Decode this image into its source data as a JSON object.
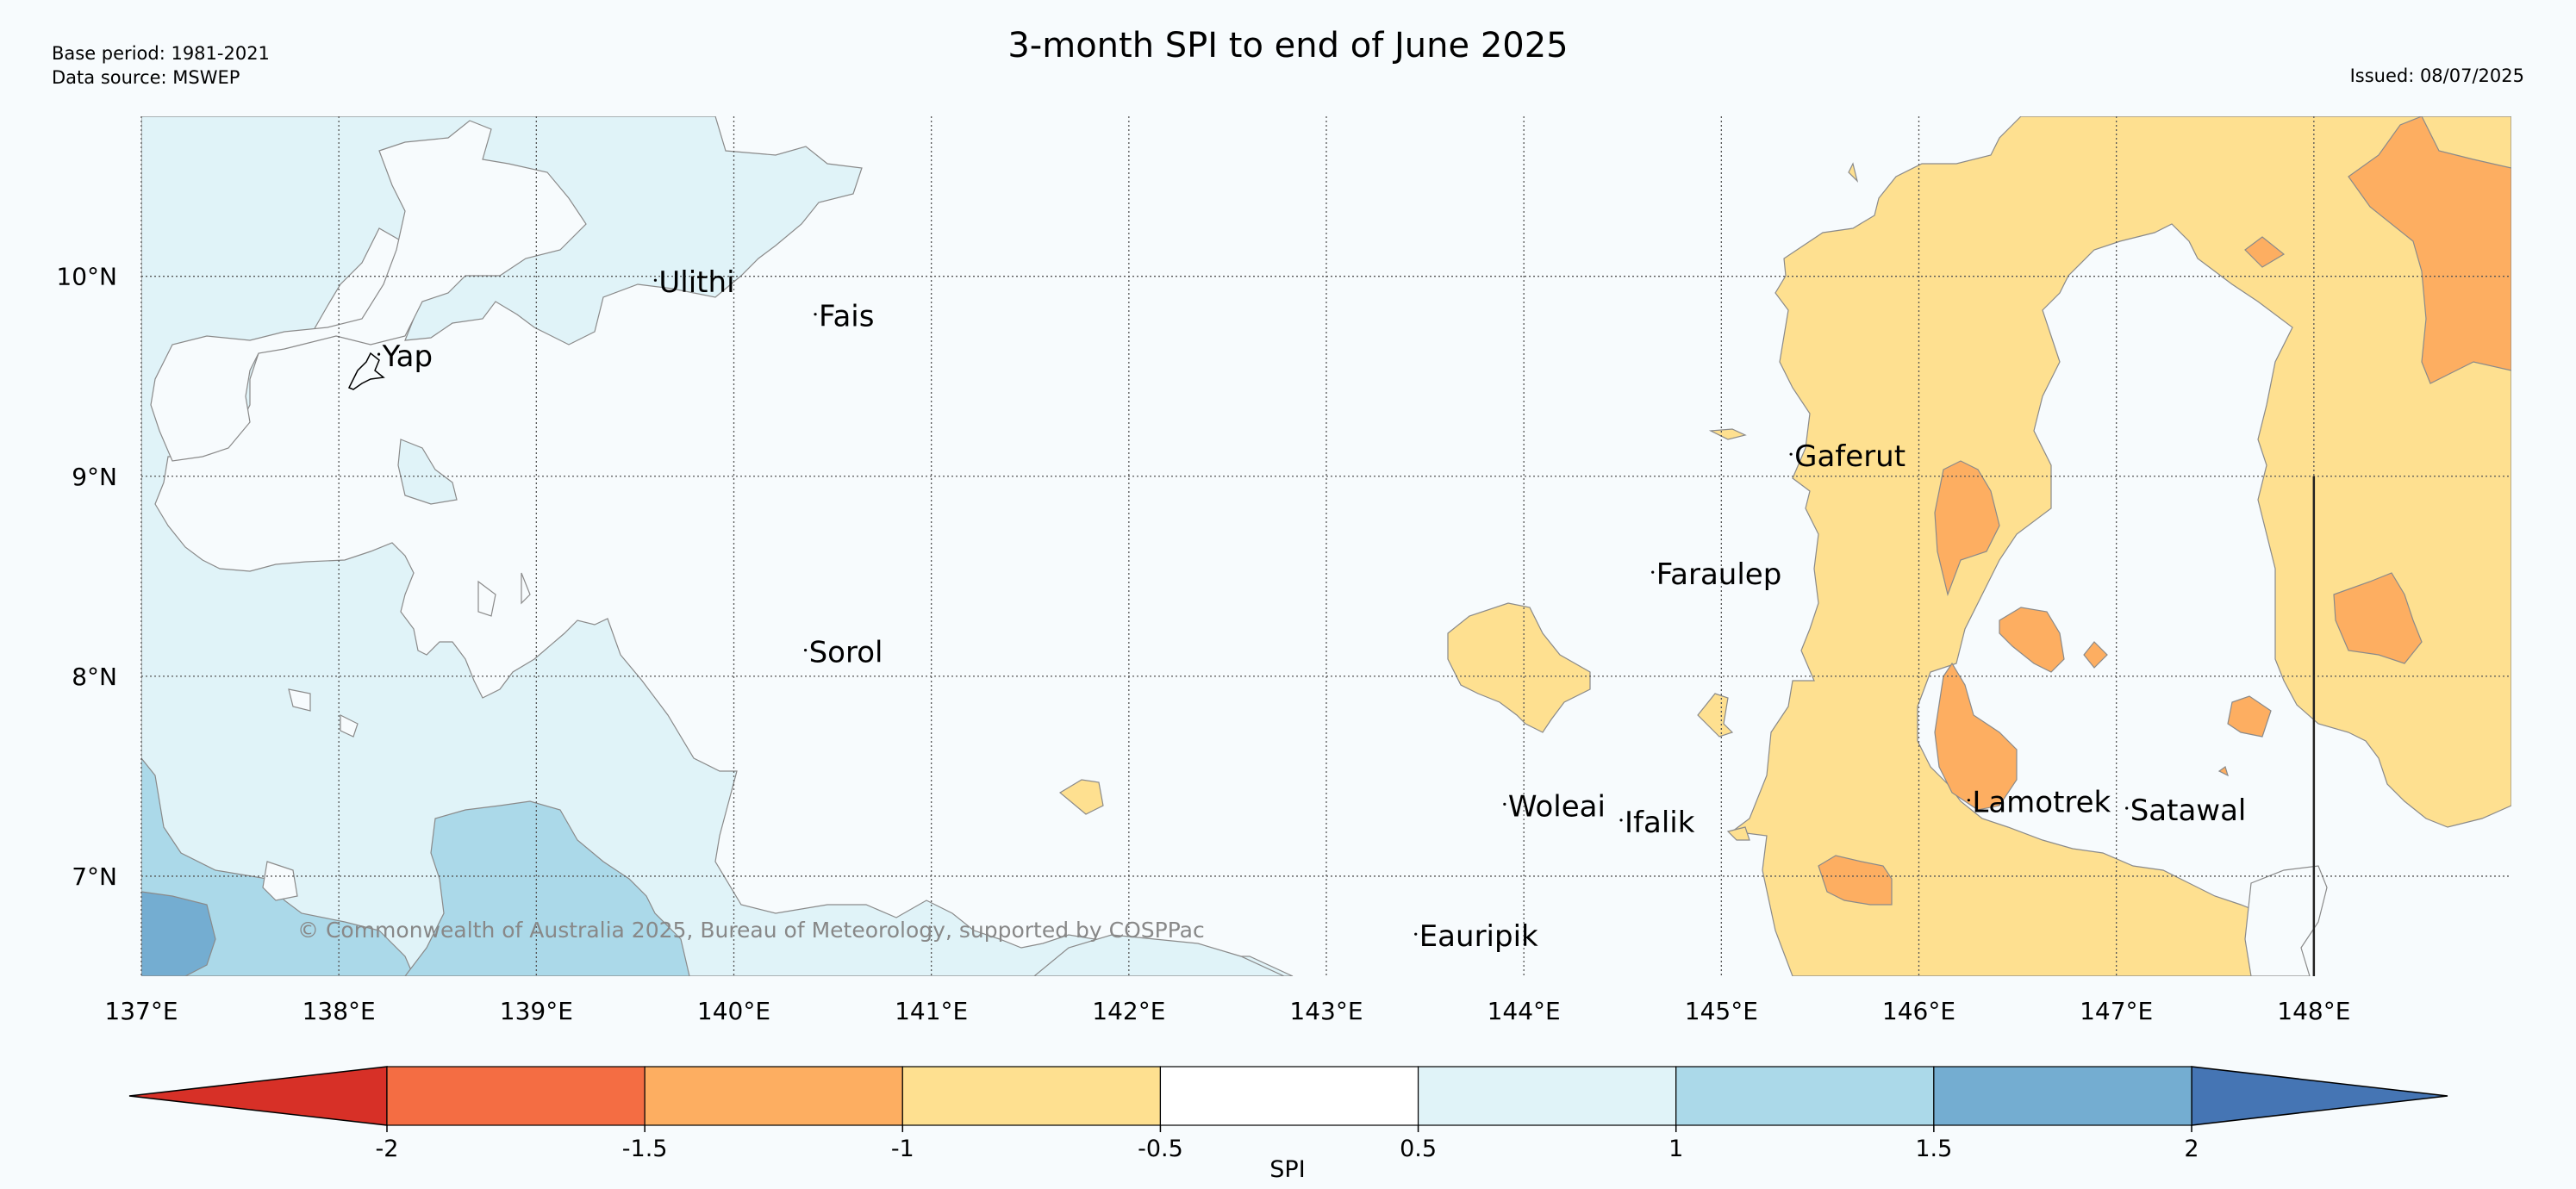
{
  "header": {
    "base_period": "Base period: 1981-2021",
    "data_source": "Data source: MSWEP",
    "title": "3-month SPI to end of June 2025",
    "issued": "Issued: 08/07/2025"
  },
  "map": {
    "lon_range": [
      137,
      149.0
    ],
    "lat_range": [
      6.5,
      10.8
    ],
    "lon_ticks": [
      {
        "value": 137,
        "label": "137°E"
      },
      {
        "value": 138,
        "label": "138°E"
      },
      {
        "value": 139,
        "label": "139°E"
      },
      {
        "value": 140,
        "label": "140°E"
      },
      {
        "value": 141,
        "label": "141°E"
      },
      {
        "value": 142,
        "label": "142°E"
      },
      {
        "value": 143,
        "label": "143°E"
      },
      {
        "value": 144,
        "label": "144°E"
      },
      {
        "value": 145,
        "label": "145°E"
      },
      {
        "value": 146,
        "label": "146°E"
      },
      {
        "value": 147,
        "label": "147°E"
      },
      {
        "value": 148,
        "label": "148°E"
      }
    ],
    "lat_ticks": [
      {
        "value": 10,
        "label": "10°N"
      },
      {
        "value": 9,
        "label": "9°N"
      },
      {
        "value": 8,
        "label": "8°N"
      },
      {
        "value": 7,
        "label": "7°N"
      }
    ],
    "places": [
      {
        "name": "Yap",
        "lon": 138.22,
        "lat": 9.55
      },
      {
        "name": "Ulithi",
        "lon": 139.62,
        "lat": 9.92
      },
      {
        "name": "Fais",
        "lon": 140.43,
        "lat": 9.75
      },
      {
        "name": "Gaferut",
        "lon": 145.37,
        "lat": 9.05
      },
      {
        "name": "Faraulep",
        "lon": 144.67,
        "lat": 8.46
      },
      {
        "name": "Sorol",
        "lon": 140.38,
        "lat": 8.07
      },
      {
        "name": "Woleai",
        "lon": 143.92,
        "lat": 7.3
      },
      {
        "name": "Ifalik",
        "lon": 144.51,
        "lat": 7.22
      },
      {
        "name": "Lamotrek",
        "lon": 146.27,
        "lat": 7.32
      },
      {
        "name": "Satawal",
        "lon": 147.07,
        "lat": 7.28
      },
      {
        "name": "Eauripik",
        "lon": 143.47,
        "lat": 6.65
      }
    ],
    "copyright": "© Commonwealth of Australia 2025, Bureau of Meteorology, supported by COSPPac"
  },
  "colorbar": {
    "label": "SPI",
    "boundaries": [
      "-2",
      "-1.5",
      "-1",
      "-0.5",
      "0.5",
      "1",
      "1.5",
      "2"
    ],
    "colors": {
      "below_-2": "#d73027",
      "-2_to_-1.5": "#f46d43",
      "-1.5_to_-1": "#fdae61",
      "-1_to_-0.5": "#fee090",
      "-0.5_to_0.5": "#ffffff",
      "0.5_to_1": "#e0f3f8",
      "1_to_1.5": "#abd9e9",
      "1.5_to_2": "#74add1",
      "above_2": "#4575b4"
    }
  }
}
